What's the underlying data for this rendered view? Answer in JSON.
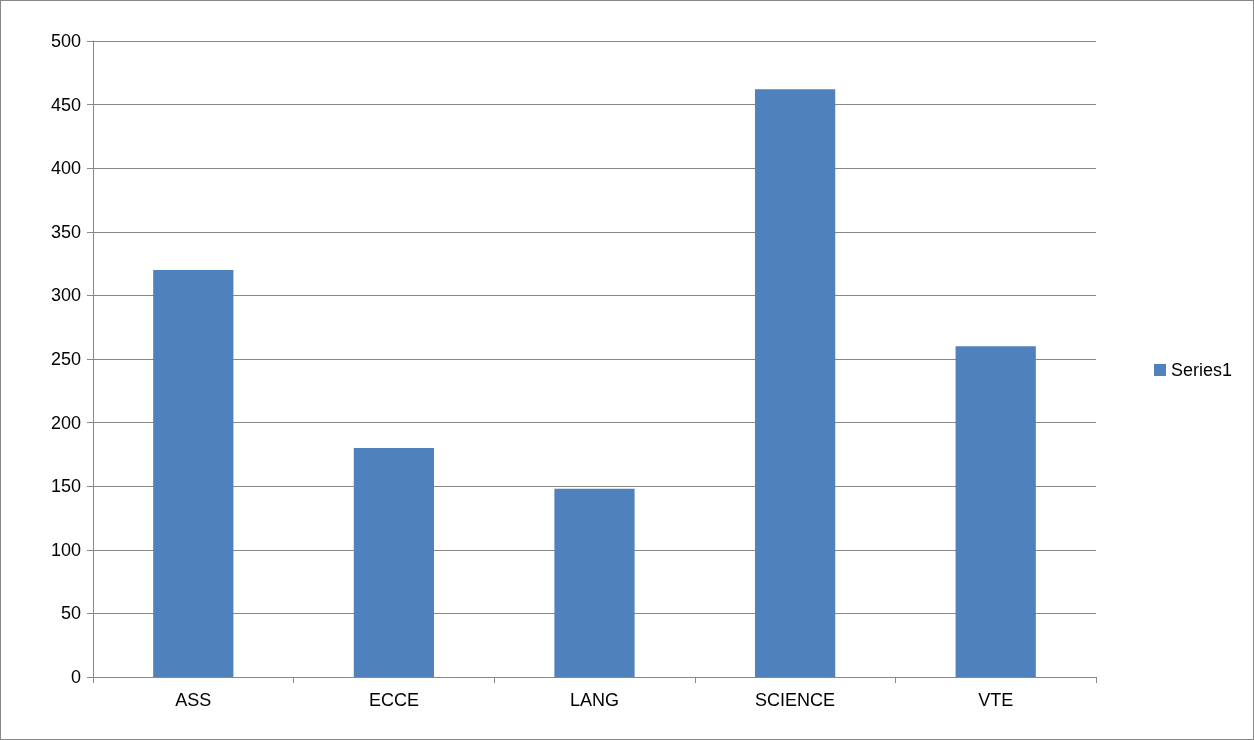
{
  "chart_data": {
    "type": "bar",
    "categories": [
      "ASS",
      "ECCE",
      "LANG",
      "SCIENCE",
      "VTE"
    ],
    "series": [
      {
        "name": "Series1",
        "color": "#4f81bd",
        "values": [
          320,
          180,
          148,
          462,
          260
        ]
      }
    ],
    "ylim": [
      0,
      500
    ],
    "yticks": [
      0,
      50,
      100,
      150,
      200,
      250,
      300,
      350,
      400,
      450,
      500
    ],
    "grid": "y",
    "legend": "right"
  }
}
